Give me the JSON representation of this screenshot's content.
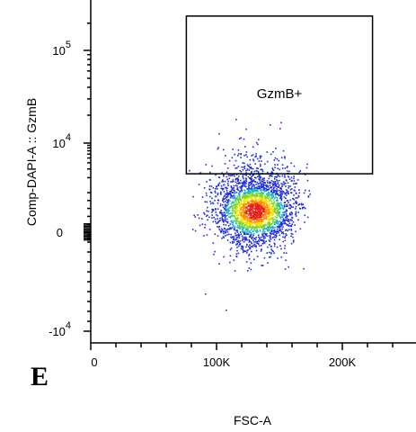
{
  "panel_label": "E",
  "chart_data": {
    "type": "scatter",
    "xlabel": "FSC-A",
    "ylabel": "Comp-DAPI-A :: GzmB",
    "x_ticks": [
      {
        "value": 0,
        "label": "0"
      },
      {
        "value": 100000,
        "label": "100K"
      },
      {
        "value": 200000,
        "label": "200K"
      }
    ],
    "y_ticks": [
      {
        "value": -10000,
        "base": "-10",
        "exp": "4"
      },
      {
        "value": 0,
        "base": "0",
        "exp": ""
      },
      {
        "value": 10000,
        "base": "10",
        "exp": "4"
      },
      {
        "value": 100000,
        "base": "10",
        "exp": "5"
      }
    ],
    "xlim": [
      0,
      262144
    ],
    "y_scale": "biexponential",
    "ylim": [
      -12000,
      262144
    ],
    "gate": {
      "label": "GzmB+",
      "x_range": [
        76000,
        224000
      ],
      "y_range": [
        2400,
        240000
      ]
    },
    "population": {
      "center_fsc": 130000,
      "center_gzmb": 250,
      "events_approx": 2600,
      "coloring": "density (blue low to red high)"
    }
  }
}
